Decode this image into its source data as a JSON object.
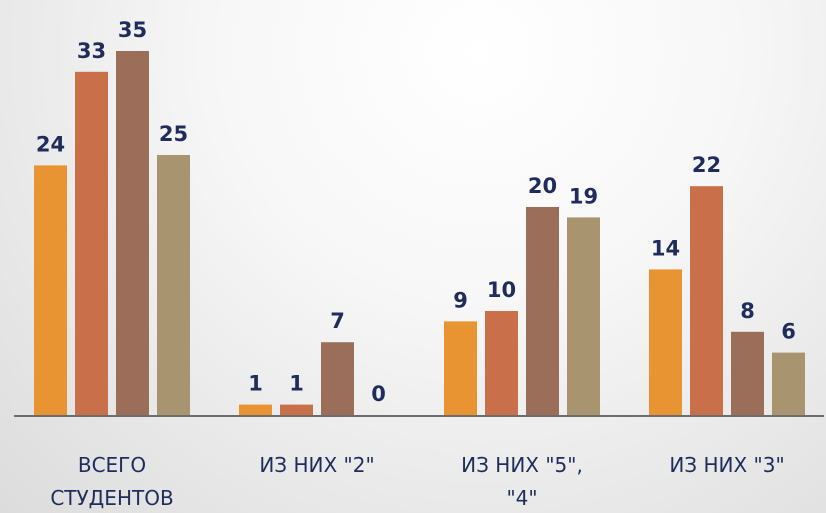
{
  "chart_data": {
    "type": "bar",
    "title": "",
    "xlabel": "",
    "ylabel": "",
    "categories": [
      [
        "ВСЕГО",
        "СТУДЕНТОВ"
      ],
      [
        "ИЗ НИХ \"2\""
      ],
      [
        "ИЗ НИХ \"5\",",
        "\"4\""
      ],
      [
        "ИЗ НИХ \"3\""
      ]
    ],
    "series": [
      {
        "color": "#e89433",
        "values": [
          24,
          1,
          9,
          14
        ]
      },
      {
        "color": "#c9704a",
        "values": [
          33,
          1,
          10,
          22
        ]
      },
      {
        "color": "#9a6e58",
        "values": [
          35,
          7,
          20,
          8
        ]
      },
      {
        "color": "#a99470",
        "values": [
          25,
          0,
          19,
          6
        ]
      }
    ],
    "ylim": [
      0,
      35
    ],
    "grid": false,
    "legend": "none",
    "data_labels": true,
    "axis_color": "#6d6d6d",
    "label_color": "#1f2c5c"
  }
}
